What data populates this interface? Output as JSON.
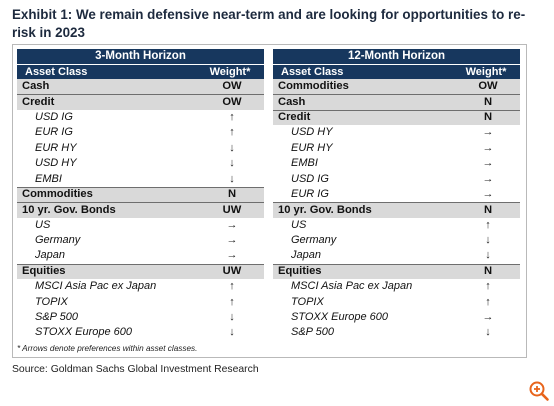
{
  "title": "Exhibit 1: We remain defensive near-term and are looking for opportunities to re-risk in 2023",
  "left_table": {
    "horizon": "3-Month Horizon",
    "col_asset": "Asset Class",
    "col_weight": "Weight*",
    "rows": [
      {
        "type": "group",
        "label": "Cash",
        "value": "OW"
      },
      {
        "type": "group",
        "label": "Credit",
        "value": "OW"
      },
      {
        "type": "item",
        "label": "USD IG",
        "value": "↑"
      },
      {
        "type": "item",
        "label": "EUR IG",
        "value": "↑"
      },
      {
        "type": "item",
        "label": "EUR HY",
        "value": "↓"
      },
      {
        "type": "item",
        "label": "USD HY",
        "value": "↓"
      },
      {
        "type": "item",
        "label": "EMBI",
        "value": "↓"
      },
      {
        "type": "group",
        "label": "Commodities",
        "value": "N"
      },
      {
        "type": "group",
        "label": "10 yr. Gov. Bonds",
        "value": "UW"
      },
      {
        "type": "item",
        "label": "US",
        "value": "→"
      },
      {
        "type": "item",
        "label": "Germany",
        "value": "→"
      },
      {
        "type": "item",
        "label": "Japan",
        "value": "→"
      },
      {
        "type": "group",
        "label": "Equities",
        "value": "UW"
      },
      {
        "type": "item",
        "label": "MSCI Asia Pac ex Japan",
        "value": "↑"
      },
      {
        "type": "item",
        "label": "TOPIX",
        "value": "↑"
      },
      {
        "type": "item",
        "label": "S&P 500",
        "value": "↓"
      },
      {
        "type": "item",
        "label": "STOXX Europe 600",
        "value": "↓"
      }
    ]
  },
  "right_table": {
    "horizon": "12-Month Horizon",
    "col_asset": "Asset Class",
    "col_weight": "Weight*",
    "rows": [
      {
        "type": "group",
        "label": "Commodities",
        "value": "OW"
      },
      {
        "type": "group",
        "label": "Cash",
        "value": "N"
      },
      {
        "type": "group",
        "label": "Credit",
        "value": "N"
      },
      {
        "type": "item",
        "label": "USD HY",
        "value": "→"
      },
      {
        "type": "item",
        "label": "EUR HY",
        "value": "→"
      },
      {
        "type": "item",
        "label": "EMBI",
        "value": "→"
      },
      {
        "type": "item",
        "label": "USD IG",
        "value": "→"
      },
      {
        "type": "item",
        "label": "EUR IG",
        "value": "→"
      },
      {
        "type": "group",
        "label": "10 yr. Gov. Bonds",
        "value": "N"
      },
      {
        "type": "item",
        "label": "US",
        "value": "↑"
      },
      {
        "type": "item",
        "label": "Germany",
        "value": "↓"
      },
      {
        "type": "item",
        "label": "Japan",
        "value": "↓"
      },
      {
        "type": "group",
        "label": "Equities",
        "value": "N"
      },
      {
        "type": "item",
        "label": "MSCI Asia Pac ex Japan",
        "value": "↑"
      },
      {
        "type": "item",
        "label": "TOPIX",
        "value": "↑"
      },
      {
        "type": "item",
        "label": "STOXX Europe 600",
        "value": "→"
      },
      {
        "type": "item",
        "label": "S&P 500",
        "value": "↓"
      }
    ]
  },
  "footnote": "* Arrows denote preferences within asset classes.",
  "source": "Source: Goldman Sachs Global Investment Research",
  "zoom_icon": "zoom-in-icon",
  "colors": {
    "header": "#17375e",
    "group_bg": "#d9d9d9",
    "zoom": "#e8641b"
  }
}
